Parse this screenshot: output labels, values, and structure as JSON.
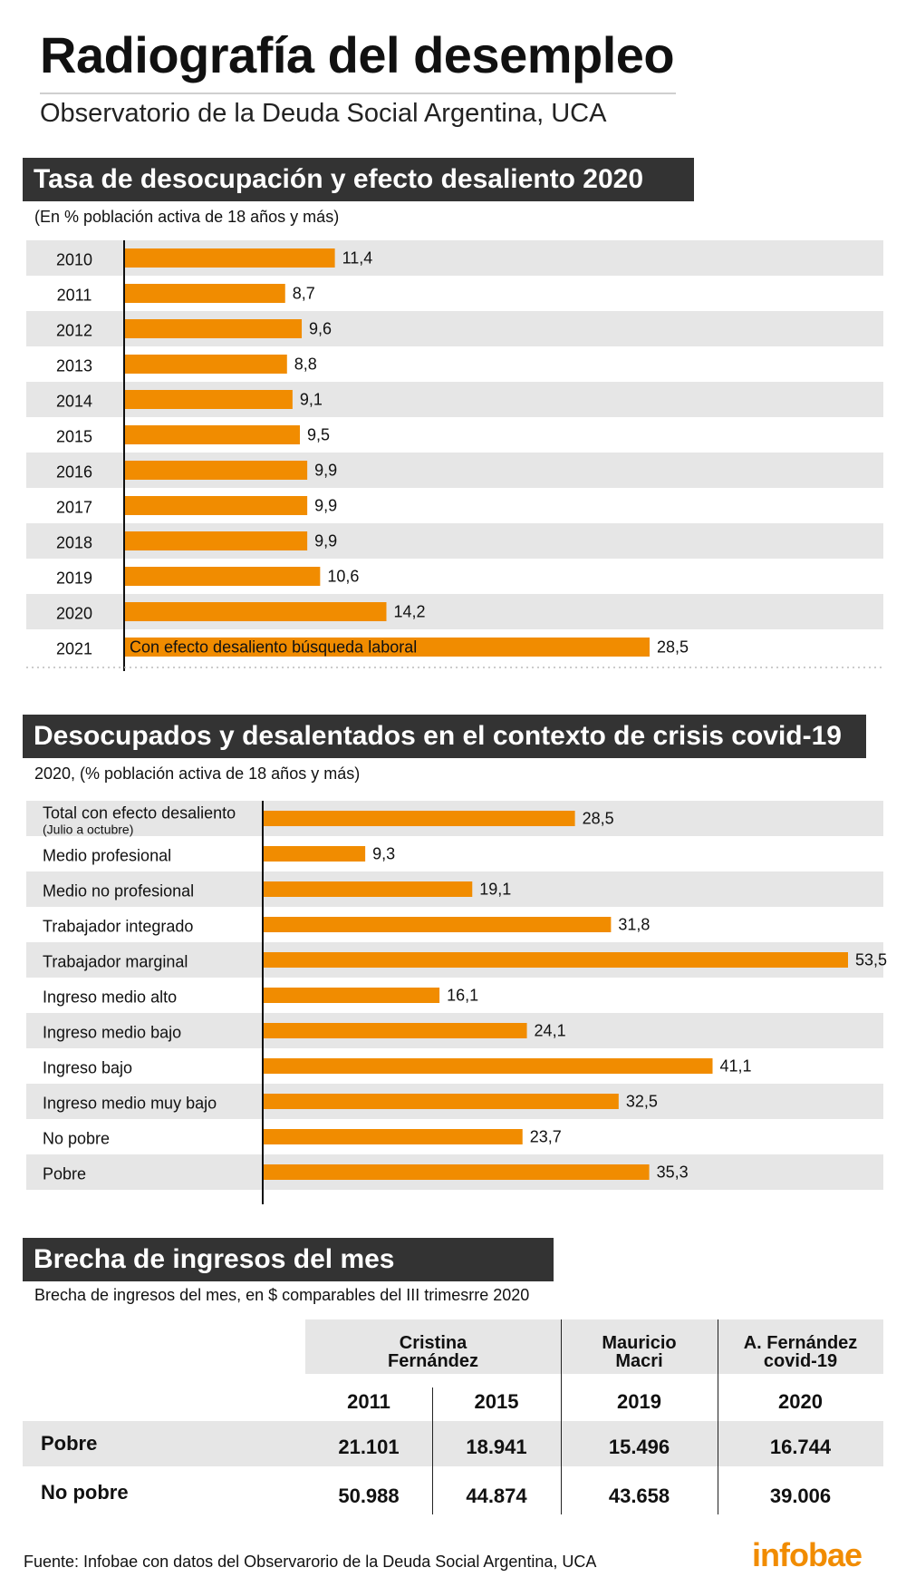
{
  "title": "Radiografía del desempleo",
  "subtitle": "Observatorio de la Deuda Social Argentina, UCA",
  "sections": {
    "s1": {
      "header": "Tasa de desocupación y efecto desaliento 2020",
      "note": "(En % población activa de 18 años y más)"
    },
    "s2": {
      "header": "Desocupados y desalentados en el contexto de crisis covid-19",
      "note": "2020, (% población activa de 18 años y más)"
    },
    "s3": {
      "header": "Brecha de ingresos del mes",
      "note": "Brecha de ingresos del mes, en $ comparables del III trimesrre 2020"
    }
  },
  "colors": {
    "bar": "#f18c00",
    "band": "#e6e6e6",
    "header_bg": "#333333",
    "logo": "#f18c00"
  },
  "chart_data": [
    {
      "type": "bar",
      "orientation": "horizontal",
      "title": "Tasa de desocupación y efecto desaliento 2020",
      "subtitle": "(En % población activa de 18 años y más)",
      "categories": [
        "2010",
        "2011",
        "2012",
        "2013",
        "2014",
        "2015",
        "2016",
        "2017",
        "2018",
        "2019",
        "2020",
        "2021"
      ],
      "values": [
        11.4,
        8.7,
        9.6,
        8.8,
        9.1,
        9.5,
        9.9,
        9.9,
        9.9,
        10.6,
        14.2,
        28.5
      ],
      "value_labels": [
        "11,4",
        "8,7",
        "9,6",
        "8,8",
        "9,1",
        "9,5",
        "9,9",
        "9,9",
        "9,9",
        "10,6",
        "14,2",
        "28,5"
      ],
      "annotations": [
        {
          "category": "2021",
          "text": "Con efecto desaliento búsqueda laboral"
        }
      ],
      "xlim": [
        0,
        28.5
      ],
      "grid": false
    },
    {
      "type": "bar",
      "orientation": "horizontal",
      "title": "Desocupados y desalentados en el contexto de crisis covid-19",
      "subtitle": "2020, (% población activa de 18 años y más)",
      "categories": [
        "Total con efecto desaliento",
        "Medio profesional",
        "Medio no profesional",
        "Trabajador integrado",
        "Trabajador marginal",
        "Ingreso medio alto",
        "Ingreso medio bajo",
        "Ingreso bajo",
        "Ingreso medio muy bajo",
        "No pobre",
        "Pobre"
      ],
      "category_notes": [
        "(Julio a octubre)",
        "",
        "",
        "",
        "",
        "",
        "",
        "",
        "",
        "",
        ""
      ],
      "values": [
        28.5,
        9.3,
        19.1,
        31.8,
        53.5,
        16.1,
        24.1,
        41.1,
        32.5,
        23.7,
        35.3
      ],
      "value_labels": [
        "28,5",
        "9,3",
        "19,1",
        "31,8",
        "53,5",
        "16,1",
        "24,1",
        "41,1",
        "32,5",
        "23,7",
        "35,3"
      ],
      "xlim": [
        0,
        53.5
      ],
      "grid": false
    },
    {
      "type": "table",
      "title": "Brecha de ingresos del mes",
      "subtitle": "Brecha de ingresos del mes, en $ comparables del III trimesrre 2020",
      "groups": [
        {
          "name": "Cristina Fernández",
          "years": [
            "2011",
            "2015"
          ]
        },
        {
          "name": "Mauricio Macri",
          "years": [
            "2019"
          ]
        },
        {
          "name": "A. Fernández covid-19",
          "years": [
            "2020"
          ]
        }
      ],
      "rows": [
        {
          "label": "Pobre",
          "values": [
            "21.101",
            "18.941",
            "15.496",
            "16.744"
          ]
        },
        {
          "label": "No pobre",
          "values": [
            "50.988",
            "44.874",
            "43.658",
            "39.006"
          ]
        }
      ]
    }
  ],
  "table": {
    "groups": [
      {
        "line1": "Cristina",
        "line2": "Fernández"
      },
      {
        "line1": "Mauricio",
        "line2": "Macri"
      },
      {
        "line1": "A. Fernández",
        "line2": "covid-19"
      }
    ],
    "years": [
      "2011",
      "2015",
      "2019",
      "2020"
    ],
    "rows": [
      {
        "label": "Pobre",
        "values": [
          "21.101",
          "18.941",
          "15.496",
          "16.744"
        ]
      },
      {
        "label": "No pobre",
        "values": [
          "50.988",
          "44.874",
          "43.658",
          "39.006"
        ]
      }
    ]
  },
  "source": "Fuente: Infobae con datos del Observarorio de la Deuda Social Argentina, UCA",
  "logo": "infobae"
}
